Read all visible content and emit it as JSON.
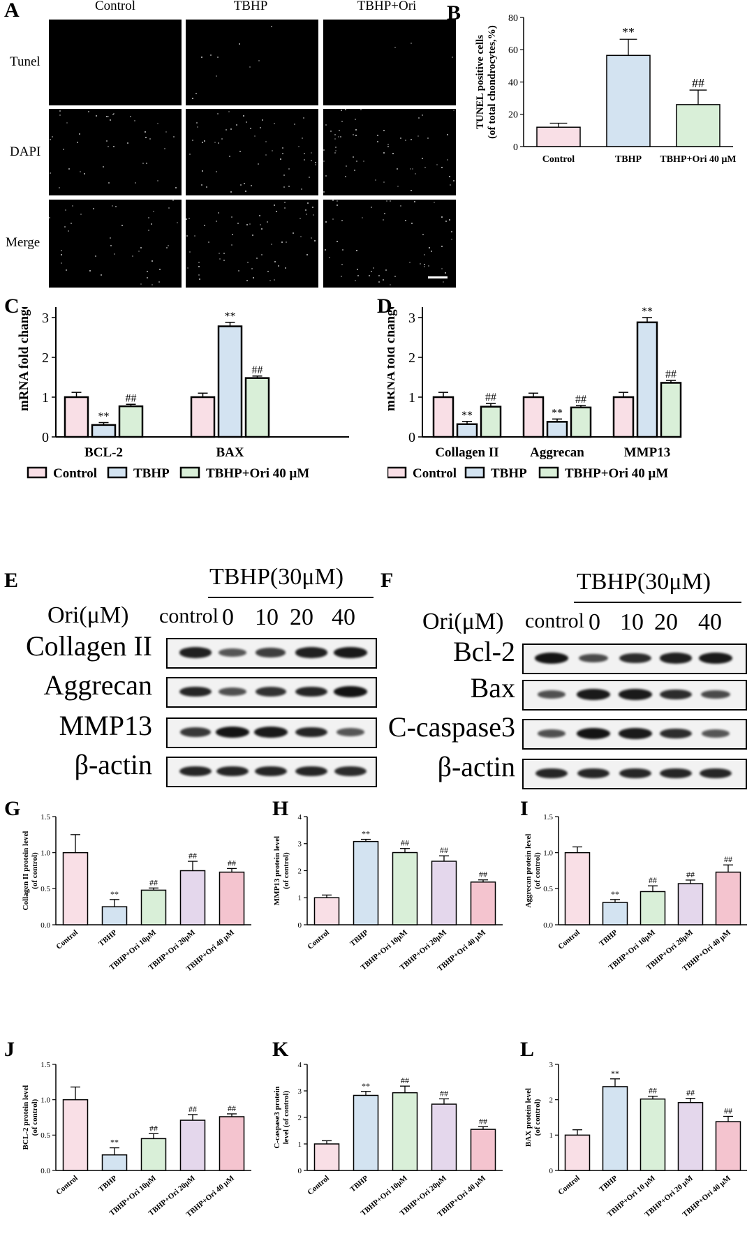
{
  "panels": {
    "A": "A",
    "B": "B",
    "C": "C",
    "D": "D",
    "E": "E",
    "F": "F",
    "G": "G",
    "H": "H",
    "I": "I",
    "J": "J",
    "K": "K",
    "L": "L"
  },
  "microscopy": {
    "columns": [
      "Control",
      "TBHP",
      "TBHP+Ori"
    ],
    "rows": [
      "Tunel",
      "DAPI",
      "Merge"
    ]
  },
  "western_e": {
    "treatment": "TBHP(30μM)",
    "ori_label": "Ori(μM)",
    "lanes": [
      "control",
      "0",
      "10",
      "20",
      "40"
    ],
    "proteins": [
      "Collagen II",
      "Aggrecan",
      "MMP13",
      "β-actin"
    ]
  },
  "western_f": {
    "treatment": "TBHP(30μM)",
    "ori_label": "Ori(μM)",
    "lanes": [
      "control",
      "0",
      "10",
      "20",
      "40"
    ],
    "proteins": [
      "Bcl-2",
      "Bax",
      "C-caspase3",
      "β-actin"
    ]
  },
  "colors": {
    "pink": "#f9dfe6",
    "blue": "#d3e3f1",
    "green": "#d9efd8",
    "purple": "#e4d7ec",
    "rose": "#f4c4cf"
  },
  "chart_data": [
    {
      "panel": "B",
      "type": "bar",
      "categories": [
        "Control",
        "TBHP",
        "TBHP+Ori 40 μM"
      ],
      "values": [
        12,
        56.5,
        26
      ],
      "errors": [
        2.5,
        10,
        9
      ],
      "annotations": [
        "",
        "**",
        "##"
      ],
      "ylabel": [
        "TUNEL positive cells",
        "(of total chondrocytes,%)"
      ],
      "ylim": [
        0,
        80
      ],
      "yticks": [
        "0",
        "20",
        "40",
        "60",
        "80"
      ],
      "colors": [
        "pink",
        "blue",
        "green"
      ]
    },
    {
      "panel": "C",
      "type": "bar",
      "groups": [
        "BCL-2",
        "BAX"
      ],
      "series": [
        {
          "name": "Control",
          "values": [
            1.0,
            1.0
          ],
          "errors": [
            0.12,
            0.1
          ],
          "annotations": [
            "",
            ""
          ]
        },
        {
          "name": "TBHP",
          "values": [
            0.3,
            2.78
          ],
          "errors": [
            0.06,
            0.1
          ],
          "annotations": [
            "**",
            "**"
          ]
        },
        {
          "name": "TBHP+Ori 40 μM",
          "values": [
            0.77,
            1.48
          ],
          "errors": [
            0.05,
            0.05
          ],
          "annotations": [
            "##",
            "##"
          ]
        }
      ],
      "ylabel": [
        "mRNA fold change"
      ],
      "ylim": [
        0,
        4
      ],
      "yticks": [
        "0",
        "1",
        "2",
        "3",
        "4"
      ],
      "colors": [
        "pink",
        "blue",
        "green"
      ]
    },
    {
      "panel": "D",
      "type": "bar",
      "groups": [
        "Collagen II",
        "Aggrecan",
        "MMP13"
      ],
      "series": [
        {
          "name": "Control",
          "values": [
            1.0,
            1.0,
            1.0
          ],
          "errors": [
            0.12,
            0.1,
            0.12
          ],
          "annotations": [
            "",
            "",
            ""
          ]
        },
        {
          "name": "TBHP",
          "values": [
            0.32,
            0.38,
            2.88
          ],
          "errors": [
            0.07,
            0.07,
            0.12
          ],
          "annotations": [
            "**",
            "**",
            "**"
          ]
        },
        {
          "name": "TBHP+Ori 40 μM",
          "values": [
            0.76,
            0.74,
            1.36
          ],
          "errors": [
            0.08,
            0.05,
            0.06
          ],
          "annotations": [
            "##",
            "##",
            "##"
          ]
        }
      ],
      "ylabel": [
        "mRNA fold change"
      ],
      "ylim": [
        0,
        4
      ],
      "yticks": [
        "0",
        "1",
        "2",
        "3",
        "4"
      ],
      "colors": [
        "pink",
        "blue",
        "green"
      ]
    },
    {
      "panel": "G",
      "type": "bar",
      "categories": [
        "Control",
        "TBHP",
        "TBHP+Ori 10μM",
        "TBHP+Ori 20μM",
        "TBHP+Ori 40 μM"
      ],
      "values": [
        1.0,
        0.25,
        0.48,
        0.75,
        0.73
      ],
      "errors": [
        0.25,
        0.1,
        0.03,
        0.13,
        0.05
      ],
      "annotations": [
        "",
        "**",
        "##",
        "##",
        "##"
      ],
      "ylabel": [
        "Collagen II protein level",
        "(of control)"
      ],
      "ylim": [
        0,
        1.5
      ],
      "yticks": [
        "0.0",
        "0.5",
        "1.0",
        "1.5"
      ],
      "colors": [
        "pink",
        "blue",
        "green",
        "purple",
        "rose"
      ]
    },
    {
      "panel": "H",
      "type": "bar",
      "categories": [
        "Control",
        "TBHP",
        "TBHP+Ori 10μM",
        "TBHP+Ori 20μM",
        "TBHP+Ori 40 μM"
      ],
      "values": [
        1.0,
        3.08,
        2.67,
        2.35,
        1.58
      ],
      "errors": [
        0.1,
        0.08,
        0.15,
        0.2,
        0.08
      ],
      "annotations": [
        "",
        "**",
        "##",
        "##",
        "##"
      ],
      "ylabel": [
        "MMP13 protein level",
        "(of control)"
      ],
      "ylim": [
        0,
        4
      ],
      "yticks": [
        "0",
        "1",
        "2",
        "3",
        "4"
      ],
      "colors": [
        "pink",
        "blue",
        "green",
        "purple",
        "rose"
      ]
    },
    {
      "panel": "I",
      "type": "bar",
      "categories": [
        "Control",
        "TBHP",
        "TBHP+Ori 10μM",
        "TBHP+Ori 20μM",
        "TBHP+Ori 40 μM"
      ],
      "values": [
        1.0,
        0.31,
        0.46,
        0.57,
        0.73
      ],
      "errors": [
        0.08,
        0.04,
        0.08,
        0.05,
        0.1
      ],
      "annotations": [
        "",
        "**",
        "##",
        "##",
        "##"
      ],
      "ylabel": [
        "Aggrecan protein level",
        "(of control)"
      ],
      "ylim": [
        0,
        1.5
      ],
      "yticks": [
        "0.0",
        "0.5",
        "1.0",
        "1.5"
      ],
      "colors": [
        "pink",
        "blue",
        "green",
        "purple",
        "rose"
      ]
    },
    {
      "panel": "J",
      "type": "bar",
      "categories": [
        "Control",
        "TBHP",
        "TBHP+Ori 10μM",
        "TBHP+Ori 20μM",
        "TBHP+Ori 40 μM"
      ],
      "values": [
        1.0,
        0.22,
        0.45,
        0.71,
        0.76
      ],
      "errors": [
        0.18,
        0.1,
        0.07,
        0.08,
        0.04
      ],
      "annotations": [
        "",
        "**",
        "##",
        "##",
        "##"
      ],
      "ylabel": [
        "BCL-2 protein level",
        "(of control)"
      ],
      "ylim": [
        0,
        1.5
      ],
      "yticks": [
        "0.0",
        "0.5",
        "1.0",
        "1.5"
      ],
      "colors": [
        "pink",
        "blue",
        "green",
        "purple",
        "rose"
      ]
    },
    {
      "panel": "K",
      "type": "bar",
      "categories": [
        "Control",
        "TBHP",
        "TBHP+Ori 10μM",
        "TBHP+Ori 20μM",
        "TBHP+Ori 40 μM"
      ],
      "values": [
        1.0,
        2.83,
        2.93,
        2.5,
        1.55
      ],
      "errors": [
        0.12,
        0.15,
        0.25,
        0.2,
        0.1
      ],
      "annotations": [
        "",
        "**",
        "##",
        "##",
        "##"
      ],
      "ylabel": [
        "C-caspase3 protein",
        "level (of control)"
      ],
      "ylim": [
        0,
        4
      ],
      "yticks": [
        "0",
        "1",
        "2",
        "3",
        "4"
      ],
      "colors": [
        "pink",
        "blue",
        "green",
        "purple",
        "rose"
      ]
    },
    {
      "panel": "L",
      "type": "bar",
      "categories": [
        "Control",
        "TBHP",
        "TBHP+Ori 10 μM",
        "TBHP+Ori 20 μM",
        "TBHP+Ori 40 μM"
      ],
      "values": [
        1.0,
        2.37,
        2.02,
        1.92,
        1.38
      ],
      "errors": [
        0.15,
        0.22,
        0.08,
        0.12,
        0.15
      ],
      "annotations": [
        "",
        "**",
        "##",
        "##",
        "##"
      ],
      "ylabel": [
        "BAX protein level",
        "(of control)"
      ],
      "ylim": [
        0,
        3
      ],
      "yticks": [
        "0",
        "1",
        "2",
        "3"
      ],
      "colors": [
        "pink",
        "blue",
        "green",
        "purple",
        "rose"
      ]
    }
  ]
}
